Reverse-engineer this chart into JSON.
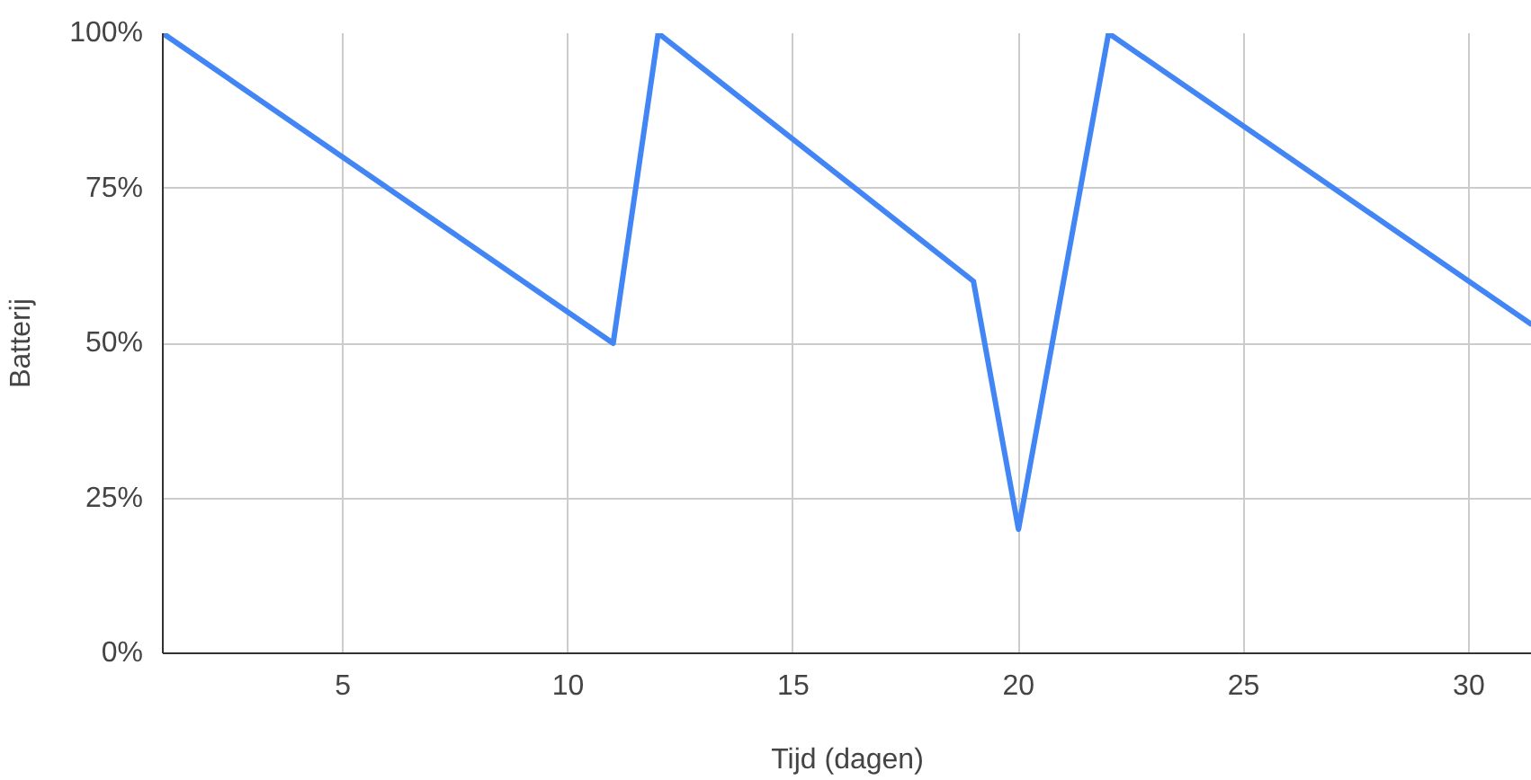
{
  "chart_data": {
    "type": "line",
    "xlabel": "Tijd (dagen)",
    "ylabel": "Batterij",
    "x": [
      1,
      11,
      12,
      19,
      20,
      22,
      31.4
    ],
    "series": [
      {
        "color": "#4285f4",
        "values": [
          100,
          50,
          100,
          60,
          20,
          100,
          53
        ]
      }
    ],
    "xlim": [
      1,
      31.4
    ],
    "xticks": [
      5,
      10,
      15,
      20,
      25,
      30
    ],
    "ylim": [
      0,
      100
    ],
    "yticks": [
      {
        "value": 0,
        "label": "0%"
      },
      {
        "value": 25,
        "label": "25%"
      },
      {
        "value": 50,
        "label": "50%"
      },
      {
        "value": 75,
        "label": "75%"
      },
      {
        "value": 100,
        "label": "100%"
      }
    ],
    "grid": true,
    "marker": "none",
    "line_style": "solid"
  }
}
